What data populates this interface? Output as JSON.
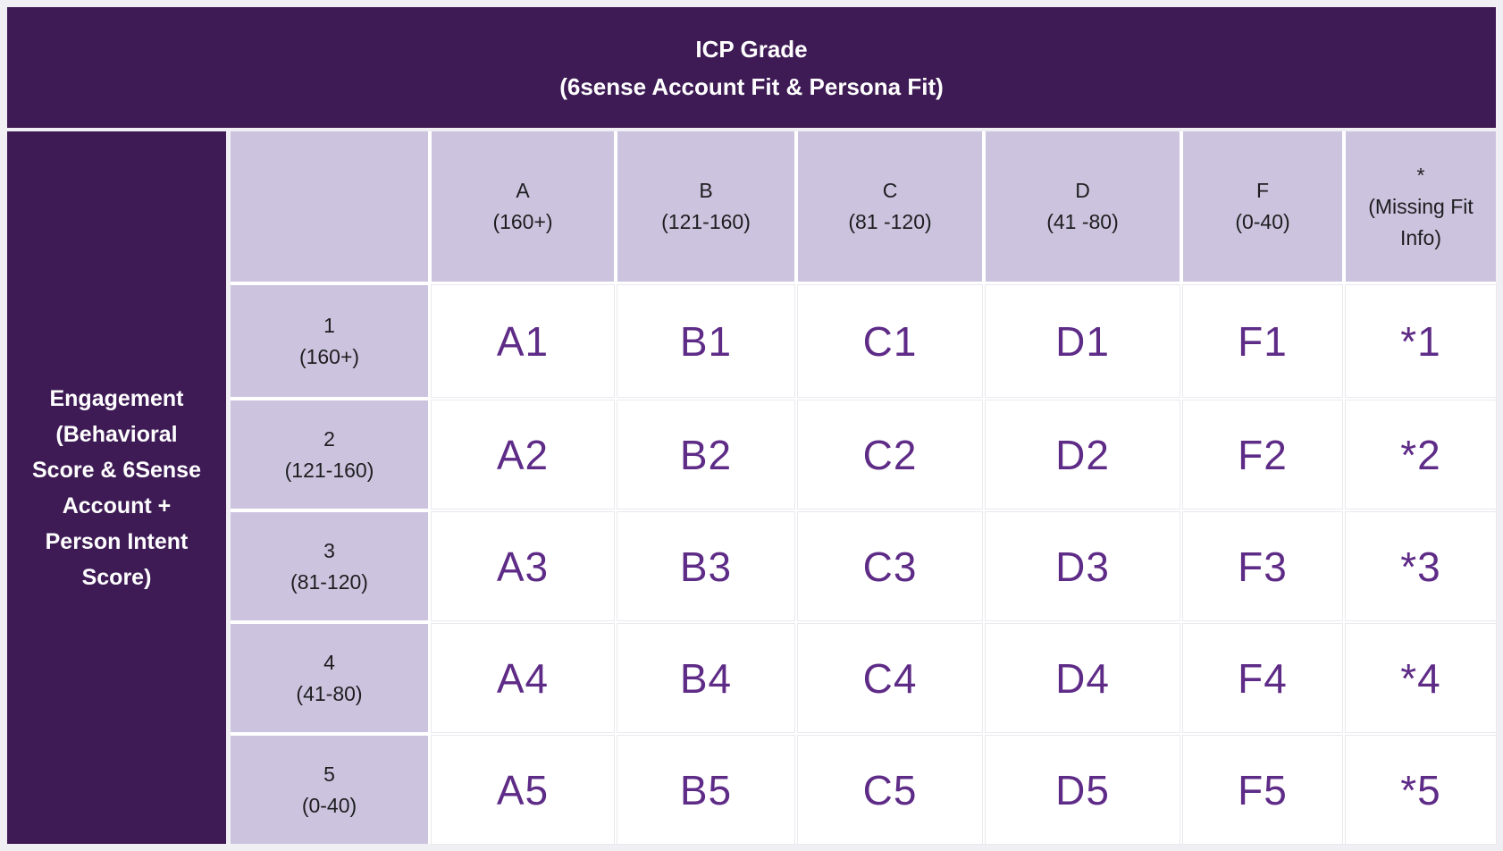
{
  "banner": {
    "title": "ICP Grade",
    "subtitle": "(6sense Account Fit & Persona Fit)"
  },
  "row_axis_label": "Engagement (Behavioral Score & 6Sense Account + Person Intent Score)",
  "columns": [
    {
      "grade": "A",
      "range": "(160+)"
    },
    {
      "grade": "B",
      "range": "(121-160)"
    },
    {
      "grade": "C",
      "range": "(81 -120)"
    },
    {
      "grade": "D",
      "range": "(41 -80)"
    },
    {
      "grade": "F",
      "range": "(0-40)"
    },
    {
      "grade": "*",
      "range": "(Missing Fit Info)"
    }
  ],
  "rows": [
    {
      "level": "1",
      "range": "(160+)",
      "cells": [
        "A1",
        "B1",
        "C1",
        "D1",
        "F1",
        "*1"
      ]
    },
    {
      "level": "2",
      "range": "(121-160)",
      "cells": [
        "A2",
        "B2",
        "C2",
        "D2",
        "F2",
        "*2"
      ]
    },
    {
      "level": "3",
      "range": "(81-120)",
      "cells": [
        "A3",
        "B3",
        "C3",
        "D3",
        "F3",
        "*3"
      ]
    },
    {
      "level": "4",
      "range": "(41-80)",
      "cells": [
        "A4",
        "B4",
        "C4",
        "D4",
        "F4",
        "*4"
      ]
    },
    {
      "level": "5",
      "range": "(0-40)",
      "cells": [
        "A5",
        "B5",
        "C5",
        "D5",
        "F5",
        "*5"
      ]
    }
  ],
  "colors": {
    "dark_purple": "#3e1b55",
    "light_purple": "#ccc4de",
    "cell_text_purple": "#5e2b87",
    "page_background": "#f0eff3",
    "cell_background": "#ffffff"
  }
}
